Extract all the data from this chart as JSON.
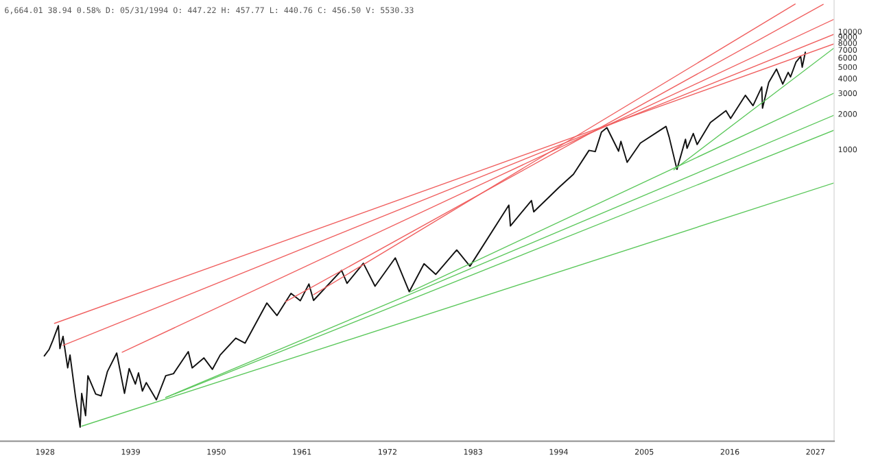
{
  "chart_data": {
    "type": "line",
    "log": "y",
    "grid": false,
    "line_style": "solid",
    "marker": "none",
    "annotations": [
      "6,664.01 38.94 0.58% D: 05/31/1994 O: 447.22 H: 457.77 L: 440.76 C: 456.50 V: 5530.33"
    ],
    "xlim": [
      1922.2,
      2029.4
    ],
    "xticks": [
      1928,
      1939,
      1950,
      1961,
      1972,
      1983,
      1994,
      2005,
      2016,
      2027
    ],
    "ylim": [
      3.34,
      18500
    ],
    "yticks": [
      1000,
      2000,
      3000,
      4000,
      5000,
      6000,
      7000,
      8000,
      9000,
      10000
    ],
    "series": [
      {
        "color": "#111111",
        "x": [
          1927.9,
          1928.5,
          1929.0,
          1929.7,
          1929.9,
          1930.3,
          1930.9,
          1931.2,
          1931.9,
          1932.5,
          1932.7,
          1933.2,
          1933.5,
          1934.5,
          1935.2,
          1936.0,
          1937.2,
          1938.2,
          1938.8,
          1939.6,
          1940.0,
          1940.5,
          1941.0,
          1942.3,
          1943.5,
          1944.5,
          1946.4,
          1946.9,
          1948.4,
          1949.5,
          1950.5,
          1952.5,
          1953.7,
          1956.5,
          1957.8,
          1959.6,
          1960.8,
          1961.9,
          1962.5,
          1966.1,
          1966.8,
          1968.9,
          1970.4,
          1973.0,
          1974.8,
          1976.7,
          1978.2,
          1980.9,
          1982.6,
          1987.6,
          1987.8,
          1990.5,
          1990.8,
          1994.1,
          1995.9,
          1997.9,
          1998.7,
          1999.5,
          2000.2,
          2001.7,
          2002.0,
          2002.8,
          2004.5,
          2007.8,
          2008.2,
          2009.2,
          2010.3,
          2010.5,
          2011.3,
          2011.8,
          2013.5,
          2015.5,
          2016.1,
          2018.0,
          2018.98,
          2020.1,
          2020.2,
          2021.0,
          2022.0,
          2022.8,
          2023.5,
          2023.8,
          2024.5,
          2025.1,
          2025.3,
          2025.7
        ],
        "values": [
          17.7,
          20,
          24,
          31.9,
          20.4,
          25.9,
          14,
          18,
          8,
          4.4,
          8.5,
          5.5,
          12,
          8.4,
          8.1,
          13,
          18.7,
          8.5,
          13.8,
          10.2,
          12.7,
          8.9,
          10.5,
          7.5,
          12,
          12.5,
          19.2,
          14,
          17,
          13.6,
          18,
          25,
          22.7,
          49.7,
          38.9,
          60,
          52,
          72,
          52.3,
          94,
          73,
          108,
          69,
          120,
          62,
          107,
          86.9,
          140,
          102,
          336,
          224,
          368,
          295,
          480,
          615,
          980,
          957,
          1400,
          1527,
          965,
          1170,
          777,
          1130,
          1565,
          1273,
          676,
          1217,
          1022,
          1363,
          1099,
          1690,
          2130,
          1829,
          2873,
          2351,
          3386,
          2237,
          3700,
          4796,
          3577,
          4500,
          4117,
          5500,
          6144,
          4982,
          6664
        ]
      },
      {
        "color": "#f06060",
        "x": [
          1929.2,
          2029.4
        ],
        "values": [
          33.4,
          7860
        ]
      },
      {
        "color": "#f06060",
        "x": [
          1930.3,
          2029.4
        ],
        "values": [
          21.7,
          9480
        ]
      },
      {
        "color": "#f06060",
        "x": [
          1937.9,
          2029.4
        ],
        "values": [
          19,
          12700
        ]
      },
      {
        "color": "#f06060",
        "x": [
          1958.9,
          2028.0
        ],
        "values": [
          51,
          17000
        ]
      },
      {
        "color": "#f06060",
        "x": [
          1962.5,
          2024.4
        ],
        "values": [
          58.5,
          17100
        ]
      },
      {
        "color": "#5cc85c",
        "x": [
          1932.7,
          2029.4
        ],
        "values": [
          4.48,
          519
        ]
      },
      {
        "color": "#5cc85c",
        "x": [
          1943.5,
          2029.4
        ],
        "values": [
          7.85,
          1455
        ]
      },
      {
        "color": "#5cc85c",
        "x": [
          1943.5,
          2029.4
        ],
        "values": [
          7.85,
          1950
        ]
      },
      {
        "color": "#5cc85c",
        "x": [
          1974.9,
          2029.4
        ],
        "values": [
          61.8,
          3000
        ]
      },
      {
        "color": "#5cc85c",
        "x": [
          2008.8,
          2029.4
        ],
        "values": [
          670,
          7250
        ]
      }
    ]
  }
}
